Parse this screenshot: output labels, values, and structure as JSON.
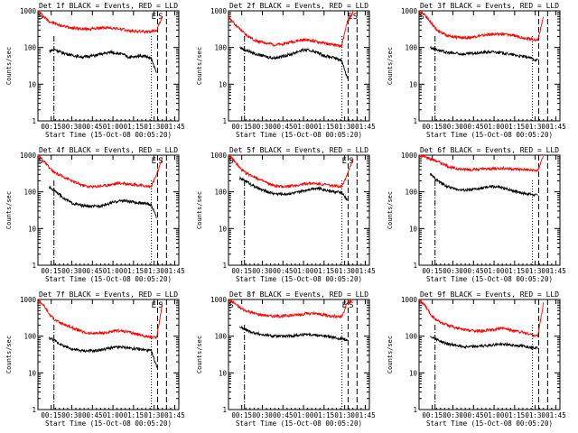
{
  "figure": {
    "xlabel": "Start Time (15-Oct-08 00:05:20)",
    "ylabel": "Counts/sec"
  },
  "chart_data": [
    {
      "type": "line",
      "title": "Det 1f BLACK = Events, RED = LLD",
      "xlabel": "Start Time (15-Oct-08 00:05:20)",
      "ylabel": "Counts/sec",
      "ylog": true,
      "ylim": [
        1,
        1000
      ],
      "xticks": [
        "00:15",
        "00:30",
        "00:45",
        "01:00",
        "01:15",
        "01:30",
        "01:45"
      ],
      "yticks": [
        "1",
        "10",
        "100",
        "1000"
      ],
      "markers": [
        {
          "label": "S",
          "x_tick": "00:05"
        },
        {
          "label": "E",
          "x_tick": "01:30"
        },
        {
          "label": "S",
          "x_tick": "01:34"
        }
      ],
      "series": [
        {
          "name": "LLD",
          "color": "#ff0000",
          "values": [
            1000,
            700,
            520,
            450,
            400,
            370,
            350,
            330,
            320,
            320,
            330,
            340,
            350,
            340,
            330,
            310,
            290,
            280,
            275,
            270,
            265,
            300,
            700
          ]
        },
        {
          "name": "Events",
          "color": "#000000",
          "values": [
            null,
            null,
            80,
            90,
            75,
            68,
            62,
            58,
            55,
            58,
            60,
            65,
            70,
            75,
            70,
            65,
            55,
            55,
            60,
            58,
            50,
            20,
            null
          ]
        }
      ]
    },
    {
      "type": "line",
      "title": "Det 2f BLACK = Events, RED = LLD",
      "xlabel": "Start Time (15-Oct-08 00:05:20)",
      "ylabel": "Counts/sec",
      "ylog": true,
      "ylim": [
        1,
        1000
      ],
      "xticks": [
        "00:15",
        "00:30",
        "00:45",
        "01:00",
        "01:15",
        "01:30",
        "01:45"
      ],
      "yticks": [
        "1",
        "10",
        "100",
        "1000"
      ],
      "markers": [
        {
          "label": "E",
          "x_tick": "01:33"
        },
        {
          "label": "S",
          "x_tick": "01:38"
        }
      ],
      "series": [
        {
          "name": "LLD",
          "color": "#ff0000",
          "values": [
            700,
            450,
            320,
            230,
            180,
            150,
            140,
            130,
            120,
            120,
            130,
            140,
            150,
            160,
            160,
            150,
            140,
            130,
            120,
            115,
            110,
            500,
            900
          ]
        },
        {
          "name": "Events",
          "color": "#000000",
          "values": [
            null,
            null,
            100,
            85,
            75,
            65,
            60,
            55,
            52,
            55,
            60,
            65,
            75,
            85,
            85,
            80,
            70,
            60,
            55,
            50,
            45,
            15,
            null
          ]
        }
      ]
    },
    {
      "type": "line",
      "title": "Det 3f BLACK = Events, RED = LLD",
      "xlabel": "Start Time (15-Oct-08 00:05:20)",
      "ylabel": "Counts/sec",
      "ylog": true,
      "ylim": [
        1,
        1000
      ],
      "xticks": [
        "00:15",
        "00:30",
        "00:45",
        "01:00",
        "01:15",
        "01:30",
        "01:45"
      ],
      "yticks": [
        "1",
        "10",
        "100",
        "1000"
      ],
      "markers": [
        {
          "label": "S",
          "x_tick": "00:05"
        }
      ],
      "series": [
        {
          "name": "LLD",
          "color": "#ff0000",
          "values": [
            1000,
            800,
            500,
            320,
            250,
            210,
            200,
            190,
            185,
            190,
            200,
            210,
            220,
            230,
            235,
            230,
            220,
            210,
            190,
            180,
            170,
            160,
            700
          ]
        },
        {
          "name": "Events",
          "color": "#000000",
          "values": [
            null,
            null,
            100,
            90,
            80,
            72,
            70,
            68,
            66,
            68,
            70,
            72,
            75,
            76,
            74,
            70,
            66,
            62,
            58,
            55,
            50,
            45,
            null
          ]
        }
      ]
    },
    {
      "type": "line",
      "title": "Det 4f BLACK = Events, RED = LLD",
      "xlabel": "Start Time (15-Oct-08 00:05:20)",
      "ylabel": "Counts/sec",
      "ylog": true,
      "ylim": [
        1,
        1000
      ],
      "xticks": [
        "00:15",
        "00:30",
        "00:45",
        "01:00",
        "01:15",
        "01:30",
        "01:45"
      ],
      "yticks": [
        "1",
        "10",
        "100",
        "1000"
      ],
      "markers": [
        {
          "label": "S",
          "x_tick": "00:05"
        },
        {
          "label": "E",
          "x_tick": "01:30"
        },
        {
          "label": "S",
          "x_tick": "01:34"
        }
      ],
      "series": [
        {
          "name": "LLD",
          "color": "#ff0000",
          "values": [
            1000,
            700,
            450,
            330,
            280,
            240,
            200,
            170,
            150,
            140,
            140,
            145,
            150,
            160,
            170,
            170,
            165,
            160,
            150,
            145,
            140,
            300,
            800
          ]
        },
        {
          "name": "Events",
          "color": "#000000",
          "values": [
            null,
            null,
            130,
            110,
            80,
            60,
            50,
            45,
            42,
            40,
            40,
            42,
            45,
            50,
            55,
            58,
            55,
            52,
            50,
            48,
            45,
            20,
            null
          ]
        }
      ]
    },
    {
      "type": "line",
      "title": "Det 5f BLACK = Events, RED = LLD",
      "xlabel": "Start Time (15-Oct-08 00:05:20)",
      "ylabel": "Counts/sec",
      "ylog": true,
      "ylim": [
        1,
        1000
      ],
      "xticks": [
        "00:15",
        "00:30",
        "00:45",
        "01:00",
        "01:15",
        "01:30",
        "01:45"
      ],
      "yticks": [
        "1",
        "10",
        "100",
        "1000"
      ],
      "markers": [
        {
          "label": "S",
          "x_tick": "00:05"
        },
        {
          "label": "E",
          "x_tick": "01:30"
        },
        {
          "label": "S",
          "x_tick": "01:34"
        }
      ],
      "series": [
        {
          "name": "LLD",
          "color": "#ff0000",
          "values": [
            1000,
            700,
            450,
            330,
            280,
            240,
            200,
            170,
            150,
            140,
            140,
            145,
            150,
            160,
            170,
            170,
            165,
            160,
            150,
            145,
            140,
            300,
            800
          ]
        },
        {
          "name": "Events",
          "color": "#000000",
          "values": [
            null,
            null,
            230,
            200,
            160,
            130,
            110,
            100,
            90,
            88,
            88,
            90,
            95,
            105,
            115,
            125,
            125,
            115,
            105,
            100,
            95,
            60,
            null
          ]
        }
      ]
    },
    {
      "type": "line",
      "title": "Det 6f BLACK = Events, RED = LLD",
      "xlabel": "Start Time (15-Oct-08 00:05:20)",
      "ylabel": "Counts/sec",
      "ylog": true,
      "ylim": [
        1,
        1000
      ],
      "xticks": [
        "00:15",
        "00:30",
        "00:45",
        "01:00",
        "01:15",
        "01:30",
        "01:45"
      ],
      "yticks": [
        "1",
        "10",
        "100",
        "1000"
      ],
      "markers": [],
      "series": [
        {
          "name": "LLD",
          "color": "#ff0000",
          "values": [
            1000,
            900,
            800,
            700,
            600,
            500,
            450,
            420,
            410,
            410,
            410,
            415,
            420,
            430,
            440,
            440,
            430,
            420,
            410,
            400,
            390,
            380,
            1000
          ]
        },
        {
          "name": "Events",
          "color": "#000000",
          "values": [
            null,
            null,
            300,
            220,
            170,
            140,
            125,
            115,
            110,
            112,
            118,
            125,
            135,
            140,
            135,
            125,
            115,
            105,
            95,
            90,
            85,
            80,
            null
          ]
        }
      ]
    },
    {
      "type": "line",
      "title": "Det 7f BLACK = Events, RED = LLD",
      "xlabel": "Start Time (15-Oct-08 00:05:20)",
      "ylabel": "Counts/sec",
      "ylog": true,
      "ylim": [
        1,
        1000
      ],
      "xticks": [
        "00:15",
        "00:30",
        "00:45",
        "01:00",
        "01:15",
        "01:30",
        "01:45"
      ],
      "yticks": [
        "1",
        "10",
        "100",
        "1000"
      ],
      "markers": [
        {
          "label": "E",
          "x_tick": "01:30"
        },
        {
          "label": "S",
          "x_tick": "01:34"
        }
      ],
      "series": [
        {
          "name": "LLD",
          "color": "#ff0000",
          "values": [
            1000,
            700,
            400,
            280,
            230,
            200,
            170,
            150,
            130,
            120,
            120,
            120,
            125,
            130,
            140,
            140,
            130,
            120,
            110,
            100,
            95,
            90,
            800
          ]
        },
        {
          "name": "Events",
          "color": "#000000",
          "values": [
            null,
            null,
            90,
            75,
            60,
            50,
            45,
            42,
            40,
            40,
            40,
            42,
            45,
            48,
            50,
            50,
            48,
            46,
            44,
            42,
            40,
            15,
            null
          ]
        }
      ]
    },
    {
      "type": "line",
      "title": "Det 8f BLACK = Events, RED = LLD",
      "xlabel": "Start Time (15-Oct-08 00:05:20)",
      "ylabel": "Counts/sec",
      "ylog": true,
      "ylim": [
        1,
        1000
      ],
      "xticks": [
        "00:15",
        "00:30",
        "00:45",
        "01:00",
        "01:15",
        "01:30",
        "01:45"
      ],
      "yticks": [
        "1",
        "10",
        "100",
        "1000"
      ],
      "markers": [
        {
          "label": "S",
          "x_tick": "00:05"
        },
        {
          "label": "E",
          "x_tick": "01:30"
        },
        {
          "label": "S",
          "x_tick": "01:34"
        }
      ],
      "series": [
        {
          "name": "LLD",
          "color": "#ff0000",
          "values": [
            1000,
            800,
            600,
            500,
            450,
            400,
            380,
            360,
            350,
            350,
            360,
            370,
            380,
            400,
            420,
            410,
            400,
            380,
            360,
            350,
            340,
            800,
            1000
          ]
        },
        {
          "name": "Events",
          "color": "#000000",
          "values": [
            null,
            null,
            180,
            150,
            130,
            120,
            110,
            105,
            100,
            100,
            100,
            102,
            105,
            110,
            115,
            110,
            105,
            100,
            95,
            90,
            85,
            80,
            null
          ]
        }
      ]
    },
    {
      "type": "line",
      "title": "Det 9f BLACK = Events, RED = LLD",
      "xlabel": "Start Time (15-Oct-08 00:05:20)",
      "ylabel": "Counts/sec",
      "ylog": true,
      "ylim": [
        1,
        1000
      ],
      "xticks": [
        "00:15",
        "00:30",
        "00:45",
        "01:00",
        "01:15",
        "01:30",
        "01:45"
      ],
      "yticks": [
        "1",
        "10",
        "100",
        "1000"
      ],
      "markers": [],
      "series": [
        {
          "name": "LLD",
          "color": "#ff0000",
          "values": [
            1000,
            700,
            400,
            280,
            230,
            200,
            180,
            160,
            150,
            145,
            140,
            140,
            145,
            150,
            160,
            160,
            150,
            140,
            130,
            120,
            110,
            100,
            800
          ]
        },
        {
          "name": "Events",
          "color": "#000000",
          "values": [
            null,
            null,
            100,
            85,
            70,
            62,
            58,
            55,
            52,
            52,
            52,
            54,
            56,
            58,
            60,
            60,
            58,
            56,
            54,
            52,
            50,
            48,
            null
          ]
        }
      ]
    }
  ]
}
